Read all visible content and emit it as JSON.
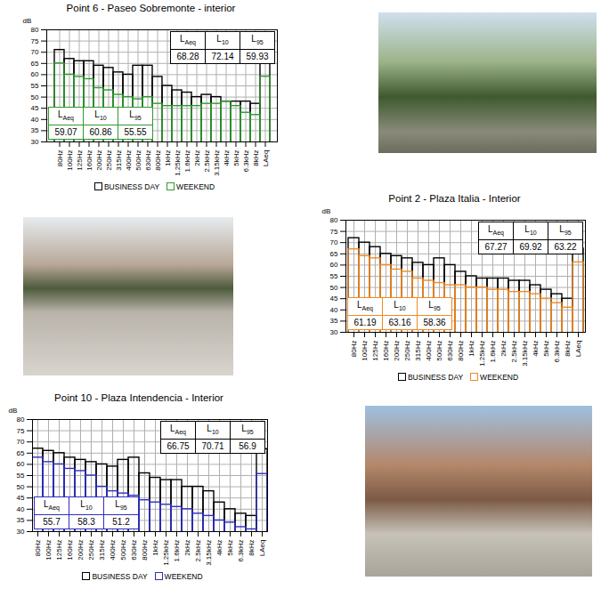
{
  "chart_data": [
    {
      "type": "bar",
      "title": "Point 6 - Paseo Sobremonte - interior",
      "ylabel": "dB",
      "categories": [
        "80Hz",
        "100Hz",
        "125Hz",
        "160Hz",
        "200Hz",
        "250Hz",
        "315Hz",
        "400Hz",
        "500Hz",
        "630Hz",
        "800Hz",
        "1kHz",
        "1.25kHz",
        "1.6kHz",
        "2kHz",
        "2.5kHz",
        "3.15kHz",
        "4kHz",
        "5kHz",
        "6.3kHz",
        "8kHz",
        "LAeq"
      ],
      "series": [
        {
          "name": "BUSINESS DAY",
          "color": "#000000",
          "values": [
            71,
            67,
            66,
            66,
            64,
            63,
            61,
            60,
            64,
            64,
            59,
            55,
            53,
            52,
            50,
            51,
            50,
            48,
            48,
            48,
            47,
            68.3
          ]
        },
        {
          "name": "WEEKEND",
          "color": "#2e9a2e",
          "values": [
            65,
            60,
            59,
            58,
            54,
            53,
            51,
            50,
            49,
            50,
            47,
            46,
            46,
            46,
            46,
            47,
            47,
            48,
            46,
            43,
            42,
            59.1
          ]
        }
      ],
      "tables": [
        {
          "name": "BUSINESS DAY",
          "headers": [
            "LAeq",
            "L10",
            "L95"
          ],
          "values": [
            68.28,
            72.14,
            59.93
          ]
        },
        {
          "name": "WEEKEND",
          "headers": [
            "LAeq",
            "L10",
            "L95"
          ],
          "values": [
            59.07,
            60.86,
            55.55
          ]
        }
      ],
      "ylim": [
        30,
        80
      ],
      "yticks": [
        30,
        35,
        40,
        45,
        50,
        55,
        60,
        65,
        70,
        75,
        80
      ],
      "grid": true,
      "legend": "bottom"
    },
    {
      "type": "bar",
      "title": "Point 2 - Plaza Italia - Interior",
      "ylabel": "dB",
      "categories": [
        "80Hz",
        "100Hz",
        "125Hz",
        "160Hz",
        "200Hz",
        "250Hz",
        "315Hz",
        "400Hz",
        "500Hz",
        "630Hz",
        "800Hz",
        "1kHz",
        "1.25kHz",
        "1.6kHz",
        "2kHz",
        "2.5kHz",
        "3.15kHz",
        "4kHz",
        "5kHz",
        "6.3kHz",
        "8kHz",
        "LAeq"
      ],
      "series": [
        {
          "name": "BUSINESS DAY",
          "color": "#000000",
          "values": [
            72,
            70,
            68,
            65,
            64,
            63,
            61,
            60,
            63,
            60,
            57,
            55,
            54,
            54,
            54,
            53,
            53,
            51,
            49,
            47,
            45,
            67.3
          ]
        },
        {
          "name": "WEEKEND",
          "color": "#f08a24",
          "values": [
            67,
            64,
            63,
            60,
            58,
            57,
            54,
            53,
            52,
            51,
            51,
            50,
            50,
            49,
            49,
            48,
            48,
            47,
            45,
            43,
            41,
            61.2
          ]
        }
      ],
      "tables": [
        {
          "name": "BUSINESS DAY",
          "headers": [
            "LAeq",
            "L10",
            "L95"
          ],
          "values": [
            67.27,
            69.92,
            63.22
          ]
        },
        {
          "name": "WEEKEND",
          "headers": [
            "LAeq",
            "L10",
            "L95"
          ],
          "values": [
            61.19,
            63.16,
            58.36
          ]
        }
      ],
      "ylim": [
        30,
        80
      ],
      "yticks": [
        30,
        35,
        40,
        45,
        50,
        55,
        60,
        65,
        70,
        75,
        80
      ],
      "grid": true,
      "legend": "bottom"
    },
    {
      "type": "bar",
      "title": "Point 10 - Plaza Intendencia - Interior",
      "ylabel": "dB",
      "categories": [
        "80Hz",
        "100Hz",
        "125Hz",
        "160Hz",
        "200Hz",
        "250Hz",
        "315Hz",
        "400Hz",
        "500Hz",
        "630Hz",
        "800Hz",
        "1kHz",
        "1.25kHz",
        "1.6kHz",
        "2kHz",
        "2.5kHz",
        "3.15kHz",
        "4kHz",
        "5kHz",
        "6.3kHz",
        "8kHz",
        "LAeq"
      ],
      "series": [
        {
          "name": "BUSINESS DAY",
          "color": "#000000",
          "values": [
            67,
            66,
            65,
            63,
            62,
            61,
            60,
            59,
            62,
            63,
            56,
            54,
            53,
            53,
            50,
            50,
            48,
            43,
            40,
            38,
            37,
            66.8
          ]
        },
        {
          "name": "WEEKEND",
          "color": "#2f2fbf",
          "values": [
            63,
            61,
            60,
            58,
            57,
            55,
            50,
            48,
            47,
            46,
            44,
            43,
            42,
            41,
            40,
            38,
            37,
            35,
            34,
            32,
            31,
            55.7
          ]
        }
      ],
      "tables": [
        {
          "name": "BUSINESS DAY",
          "headers": [
            "LAeq",
            "L10",
            "L95"
          ],
          "values": [
            66.75,
            70.71,
            56.9
          ]
        },
        {
          "name": "WEEKEND",
          "headers": [
            "LAeq",
            "L10",
            "L95"
          ],
          "values": [
            55.7,
            58.3,
            51.2
          ]
        }
      ],
      "ylim": [
        30,
        80
      ],
      "yticks": [
        30,
        35,
        40,
        45,
        50,
        55,
        60,
        65,
        70,
        75,
        80
      ],
      "grid": true,
      "legend": "bottom"
    }
  ]
}
